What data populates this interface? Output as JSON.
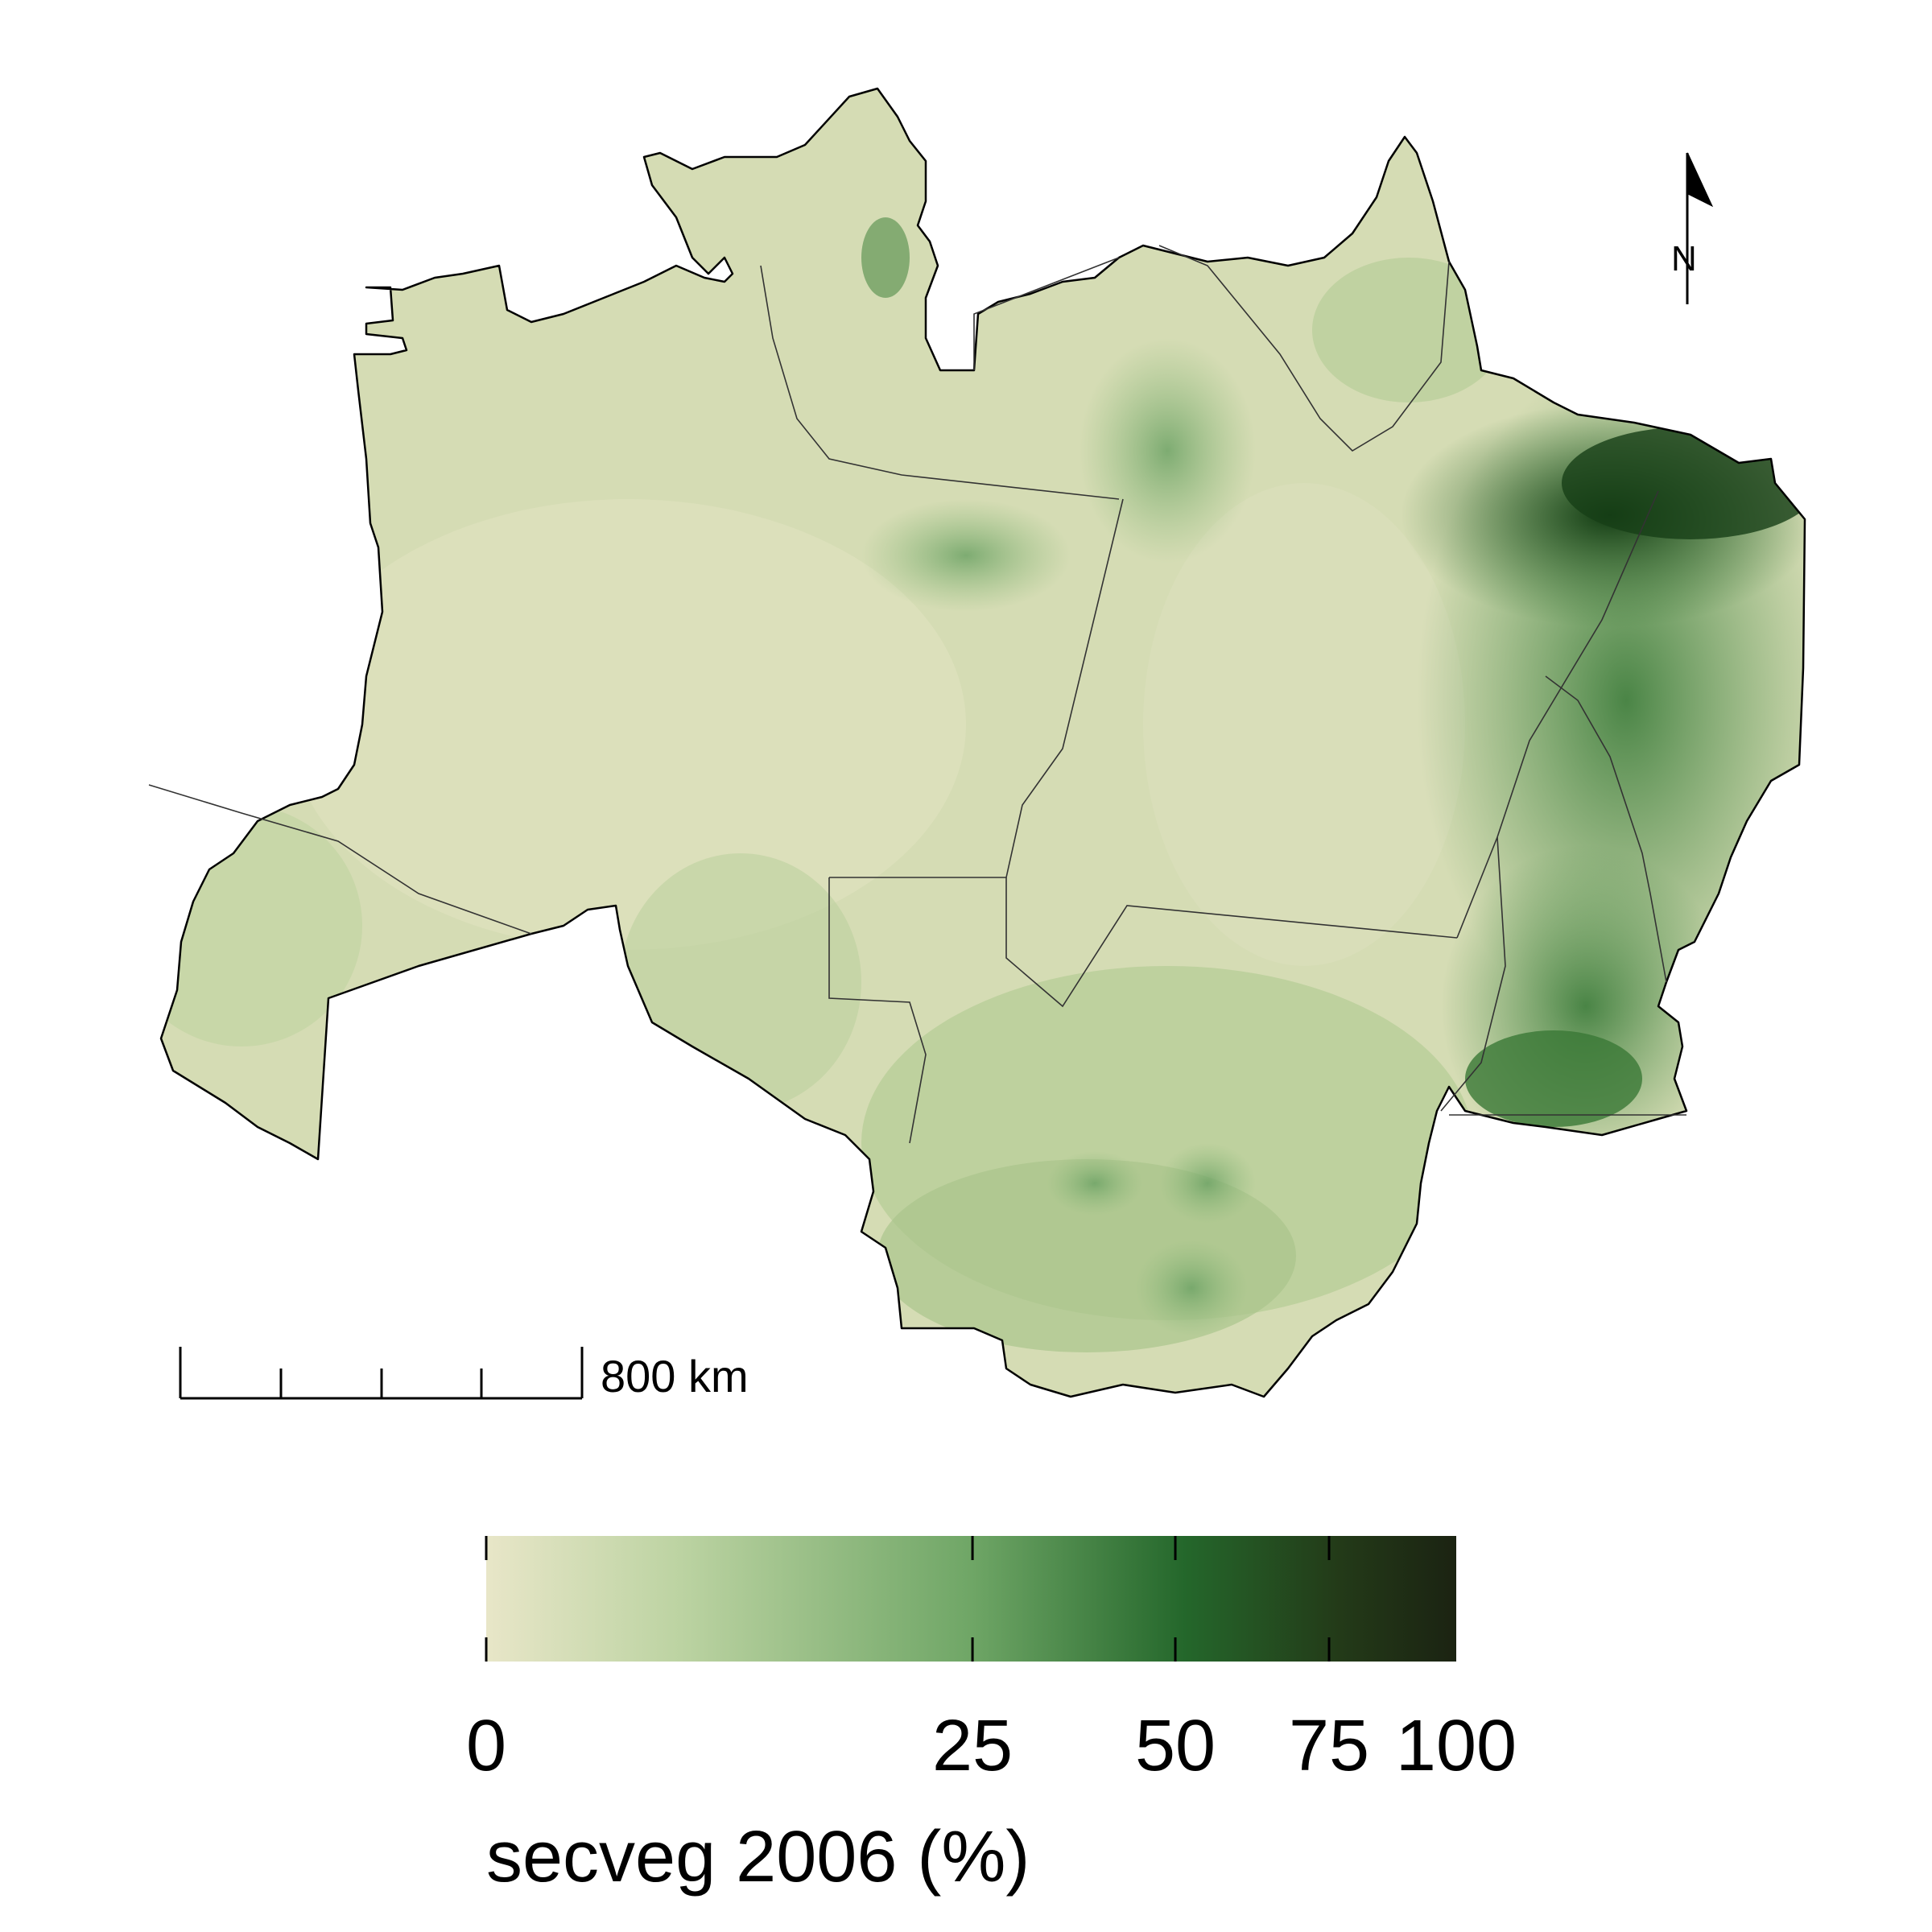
{
  "map": {
    "scale_bar_label": "800 km",
    "north_label": "N"
  },
  "legend": {
    "title": "secveg 2006 (%)",
    "ticks": [
      {
        "value": 0,
        "label": "0"
      },
      {
        "value": 25,
        "label": "25"
      },
      {
        "value": 50,
        "label": "50"
      },
      {
        "value": 75,
        "label": "75"
      },
      {
        "value": 100,
        "label": "100"
      }
    ],
    "colors": [
      "#e6e5c6",
      "#b9d0a0",
      "#8cb677",
      "#5a9a5a",
      "#1c5a20",
      "#1c2a12"
    ]
  },
  "colors": {
    "boundary": "#000000",
    "low": "#dcdfba",
    "mid": "#a9c98d",
    "high": "#3f7c3c",
    "very_high": "#1d4a1d"
  }
}
